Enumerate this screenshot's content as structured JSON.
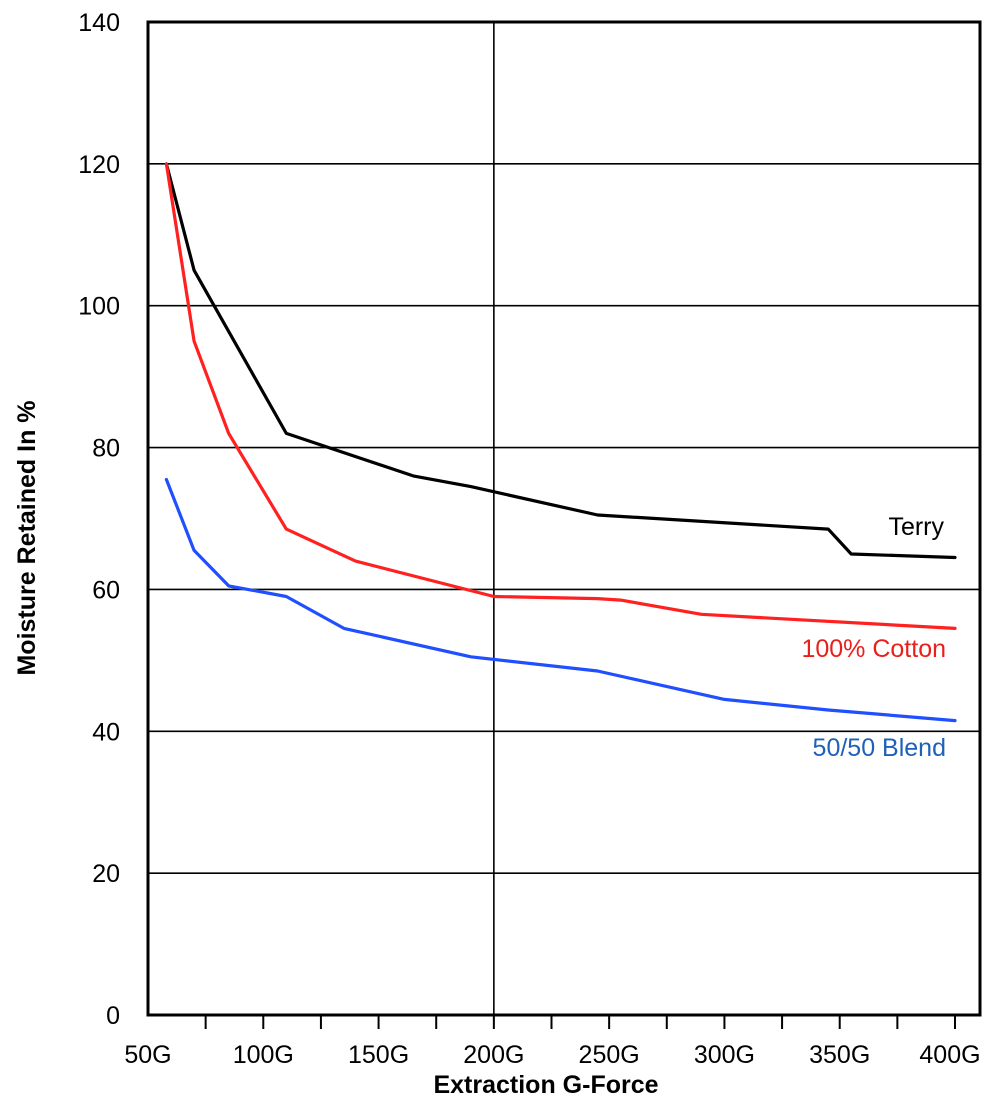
{
  "chart_data": {
    "type": "line",
    "xlabel": "Extraction G-Force",
    "ylabel": "Moisture Retained In %",
    "xlim": [
      50,
      400
    ],
    "ylim": [
      0,
      140
    ],
    "x_tick_values": [
      50,
      100,
      150,
      200,
      250,
      300,
      350,
      400
    ],
    "x_tick_labels": [
      "50G",
      "100G",
      "150G",
      "200G",
      "250G",
      "300G",
      "350G",
      "400G"
    ],
    "y_tick_values": [
      0,
      20,
      40,
      60,
      80,
      100,
      120,
      140
    ],
    "y_tick_labels": [
      "0",
      "20",
      "40",
      "60",
      "80",
      "100",
      "120",
      "140"
    ],
    "minor_x_ticks": [
      75,
      125,
      175,
      225,
      275,
      325,
      375
    ],
    "gridlines": {
      "x": [
        200
      ],
      "y": [
        20,
        40,
        60,
        80,
        100,
        120
      ]
    },
    "grid": true,
    "series": [
      {
        "name": "Terry",
        "color": "#000000",
        "label_color": "#000000",
        "x": [
          58,
          70,
          110,
          165,
          190,
          245,
          345,
          355,
          400
        ],
        "y": [
          120,
          105,
          82,
          76,
          74.5,
          70.5,
          68.5,
          65,
          64.5
        ]
      },
      {
        "name": "100% Cotton",
        "color": "#ff2020",
        "label_color": "#e8201c",
        "x": [
          58,
          70,
          85,
          110,
          140,
          200,
          245,
          255,
          290,
          400
        ],
        "y": [
          120,
          95,
          82,
          68.5,
          64,
          59,
          58.7,
          58.5,
          56.5,
          54.5
        ]
      },
      {
        "name": "50/50 Blend",
        "color": "#1f4fff",
        "label_color": "#1f60b8",
        "x": [
          58,
          70,
          85,
          110,
          135,
          190,
          245,
          300,
          345,
          400
        ],
        "y": [
          75.5,
          65.5,
          60.5,
          59,
          54.5,
          50.5,
          48.5,
          44.5,
          43,
          41.5
        ]
      }
    ]
  }
}
